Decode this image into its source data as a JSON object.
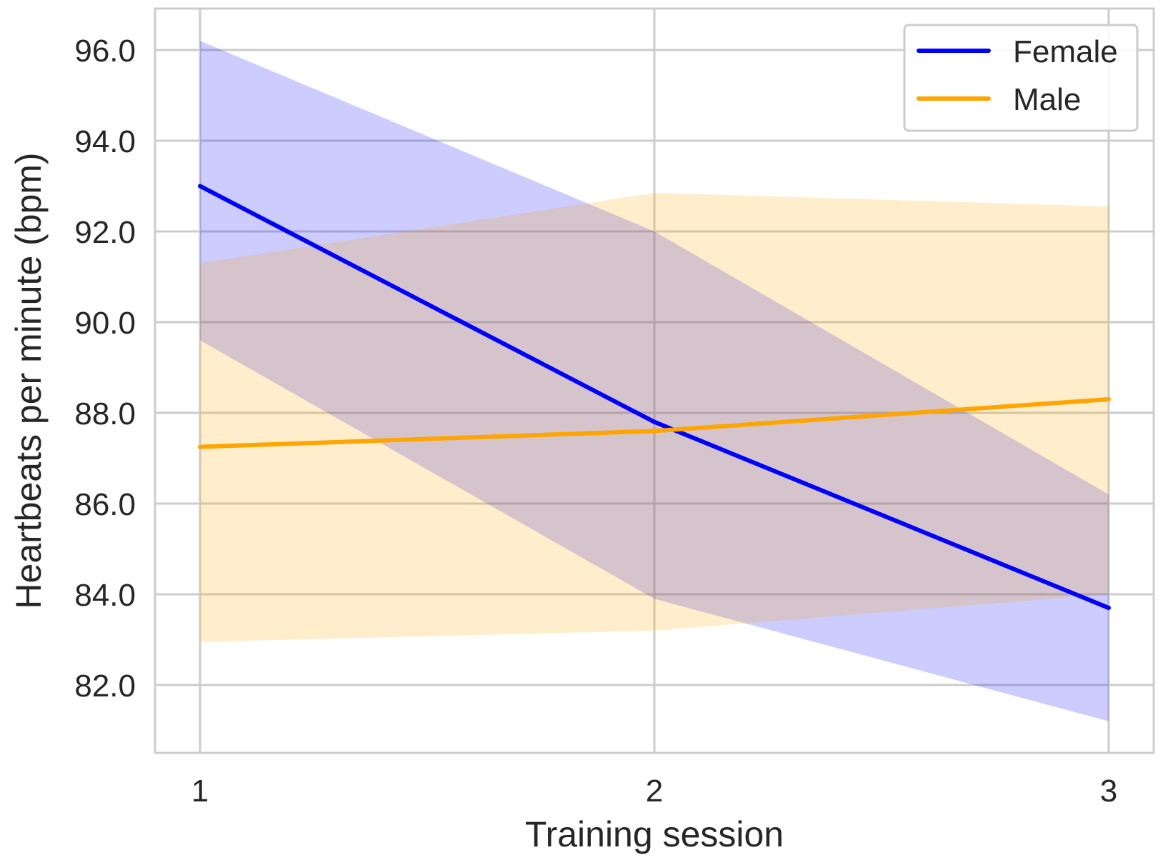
{
  "chart_data": {
    "type": "line",
    "x": [
      1,
      2,
      3
    ],
    "xticks": [
      "1",
      "2",
      "3"
    ],
    "yticks": [
      "82.0",
      "84.0",
      "86.0",
      "88.0",
      "90.0",
      "92.0",
      "94.0",
      "96.0"
    ],
    "xlabel": "Training session",
    "ylabel": "Heartbeats per minute (bpm)",
    "xlim": [
      0.9,
      3.1
    ],
    "ylim": [
      80.5,
      96.9
    ],
    "grid": true,
    "legend_position": "top-right",
    "series": [
      {
        "name": "Female",
        "color": "#0000ff",
        "band_color": "#0000ff",
        "values": [
          93.0,
          87.8,
          83.7
        ],
        "ci_lower": [
          89.6,
          83.9,
          81.2
        ],
        "ci_upper": [
          96.2,
          92.0,
          86.2
        ]
      },
      {
        "name": "Male",
        "color": "#ffa500",
        "band_color": "#ffa500",
        "values": [
          87.25,
          87.6,
          88.3
        ],
        "ci_lower": [
          82.95,
          83.2,
          84.0
        ],
        "ci_upper": [
          91.3,
          92.85,
          92.55
        ]
      }
    ]
  }
}
